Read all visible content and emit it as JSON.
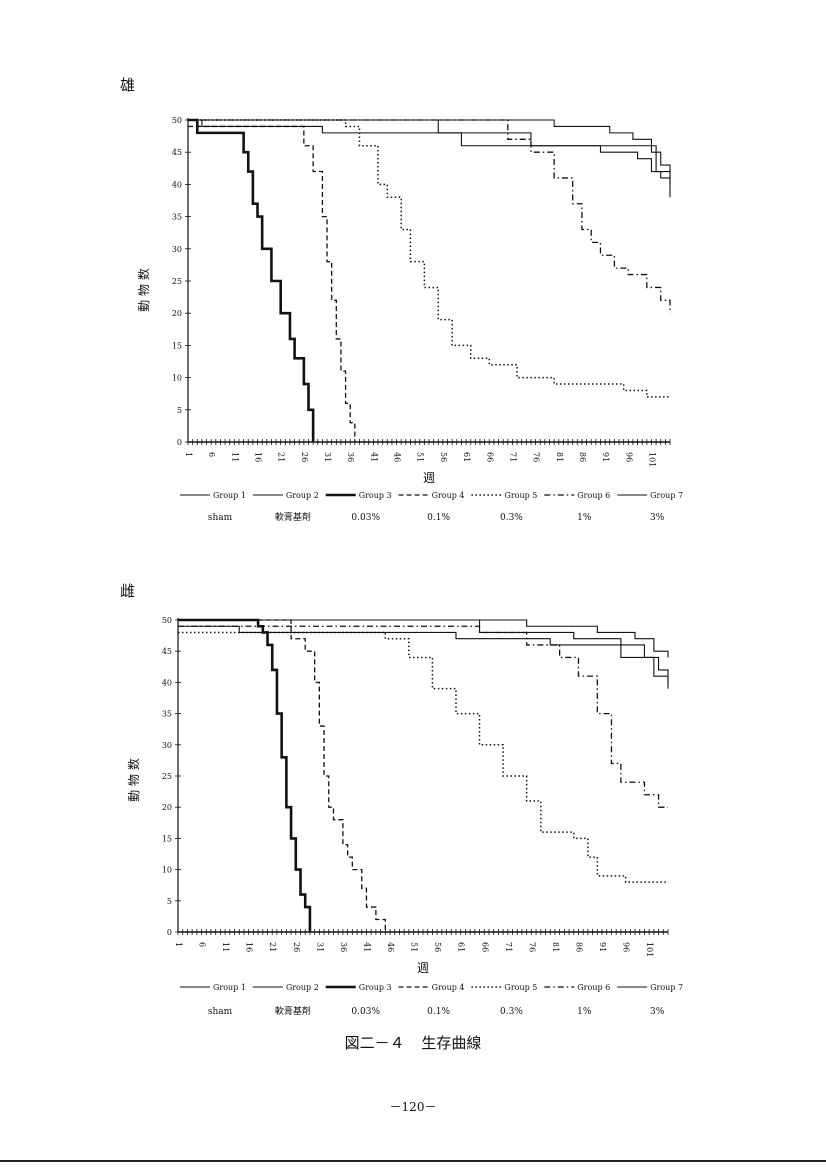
{
  "figure": {
    "caption_label": "図二－４",
    "caption_title": "生存曲線",
    "page_number": "－120－"
  },
  "chart_data": [
    {
      "type": "line",
      "panel_label": "雄",
      "xlabel": "週",
      "ylabel": "動 物 数",
      "ylim": [
        0,
        50
      ],
      "yticks": [
        0,
        5,
        10,
        15,
        20,
        25,
        30,
        35,
        40,
        45,
        50
      ],
      "xlim": [
        1,
        105
      ],
      "xticks": [
        1,
        6,
        11,
        16,
        21,
        26,
        31,
        36,
        41,
        46,
        51,
        56,
        61,
        66,
        71,
        76,
        81,
        86,
        91,
        96,
        101
      ],
      "series": [
        {
          "name": "Group 1",
          "sublabel": "sham",
          "style": "solid-thin",
          "x": [
            1,
            40,
            60,
            80,
            92,
            97,
            101,
            103,
            105
          ],
          "y": [
            50,
            50,
            50,
            49,
            48,
            47,
            45,
            43,
            41
          ]
        },
        {
          "name": "Group 2",
          "sublabel": "軟膏基剤",
          "style": "solid-thin",
          "x": [
            1,
            4,
            12,
            30,
            60,
            80,
            102,
            105
          ],
          "y": [
            50,
            49,
            49,
            48,
            46,
            46,
            42,
            40
          ]
        },
        {
          "name": "Group 3",
          "sublabel": "0.03%",
          "style": "solid-thick",
          "x": [
            1,
            3,
            8,
            13,
            14,
            15,
            16,
            17,
            19,
            21,
            23,
            24,
            26,
            27,
            28
          ],
          "y": [
            50,
            48,
            48,
            45,
            42,
            37,
            35,
            30,
            25,
            20,
            16,
            13,
            9,
            5,
            0
          ]
        },
        {
          "name": "Group 4",
          "sublabel": "0.1%",
          "style": "dash",
          "x": [
            1,
            25,
            26,
            28,
            30,
            31,
            32,
            33,
            34,
            35,
            36,
            37
          ],
          "y": [
            49,
            49,
            46,
            42,
            35,
            28,
            22,
            16,
            11,
            6,
            3,
            0
          ]
        },
        {
          "name": "Group 5",
          "sublabel": "0.3%",
          "style": "dot",
          "x": [
            1,
            35,
            38,
            42,
            44,
            47,
            49,
            52,
            55,
            58,
            62,
            66,
            72,
            80,
            90,
            95,
            100,
            105
          ],
          "y": [
            50,
            49,
            46,
            40,
            38,
            33,
            28,
            24,
            19,
            15,
            13,
            12,
            10,
            9,
            9,
            8,
            7,
            7
          ]
        },
        {
          "name": "Group 6",
          "sublabel": "1%",
          "style": "dashdot",
          "x": [
            1,
            70,
            75,
            80,
            84,
            86,
            88,
            90,
            93,
            96,
            100,
            103,
            105
          ],
          "y": [
            50,
            47,
            45,
            41,
            37,
            33,
            31,
            29,
            27,
            26,
            24,
            22,
            20
          ]
        },
        {
          "name": "Group 7",
          "sublabel": "3%",
          "style": "solid-thin",
          "x": [
            1,
            55,
            75,
            90,
            98,
            101,
            103,
            105
          ],
          "y": [
            50,
            48,
            46,
            45,
            44,
            42,
            41,
            38
          ]
        }
      ]
    },
    {
      "type": "line",
      "panel_label": "雌",
      "xlabel": "週",
      "ylabel": "動 物 数",
      "ylim": [
        0,
        50
      ],
      "yticks": [
        0,
        5,
        10,
        15,
        20,
        25,
        30,
        35,
        40,
        45,
        50
      ],
      "xlim": [
        1,
        105
      ],
      "xticks": [
        1,
        6,
        11,
        16,
        21,
        26,
        31,
        36,
        41,
        46,
        51,
        56,
        61,
        66,
        71,
        76,
        81,
        86,
        91,
        96,
        101
      ],
      "series": [
        {
          "name": "Group 1",
          "sublabel": "sham",
          "style": "solid-thin",
          "x": [
            1,
            60,
            75,
            90,
            98,
            102,
            105
          ],
          "y": [
            50,
            50,
            49,
            48,
            47,
            45,
            44
          ]
        },
        {
          "name": "Group 2",
          "sublabel": "軟膏基剤",
          "style": "solid-thin",
          "x": [
            1,
            8,
            14,
            60,
            80,
            95,
            102,
            105
          ],
          "y": [
            49,
            49,
            48,
            47,
            46,
            44,
            41,
            39
          ]
        },
        {
          "name": "Group 3",
          "sublabel": "0.03%",
          "style": "solid-thick",
          "x": [
            1,
            16,
            18,
            19,
            20,
            21,
            22,
            23,
            24,
            25,
            26,
            27,
            28,
            29
          ],
          "y": [
            50,
            50,
            49,
            48,
            46,
            42,
            35,
            28,
            20,
            15,
            10,
            6,
            4,
            0
          ]
        },
        {
          "name": "Group 4",
          "sublabel": "0.1%",
          "style": "dash",
          "x": [
            1,
            25,
            28,
            30,
            31,
            32,
            33,
            34,
            36,
            37,
            38,
            40,
            41,
            43,
            45
          ],
          "y": [
            50,
            47,
            45,
            40,
            33,
            25,
            20,
            18,
            14,
            12,
            10,
            7,
            4,
            2,
            0
          ]
        },
        {
          "name": "Group 5",
          "sublabel": "0.3%",
          "style": "dot",
          "x": [
            1,
            45,
            50,
            55,
            60,
            65,
            70,
            75,
            78,
            80,
            85,
            88,
            90,
            93,
            96,
            100,
            105
          ],
          "y": [
            48,
            47,
            44,
            39,
            35,
            30,
            25,
            21,
            16,
            16,
            15,
            12,
            9,
            9,
            8,
            8,
            8
          ]
        },
        {
          "name": "Group 6",
          "sublabel": "1%",
          "style": "dashdot",
          "x": [
            1,
            65,
            75,
            82,
            86,
            90,
            93,
            95,
            97,
            100,
            103,
            105
          ],
          "y": [
            49,
            48,
            46,
            44,
            41,
            35,
            27,
            24,
            24,
            22,
            20,
            20
          ]
        },
        {
          "name": "Group 7",
          "sublabel": "3%",
          "style": "solid-thin",
          "x": [
            1,
            65,
            85,
            95,
            100,
            103,
            105
          ],
          "y": [
            50,
            48,
            47,
            46,
            44,
            42,
            40
          ]
        }
      ]
    }
  ]
}
